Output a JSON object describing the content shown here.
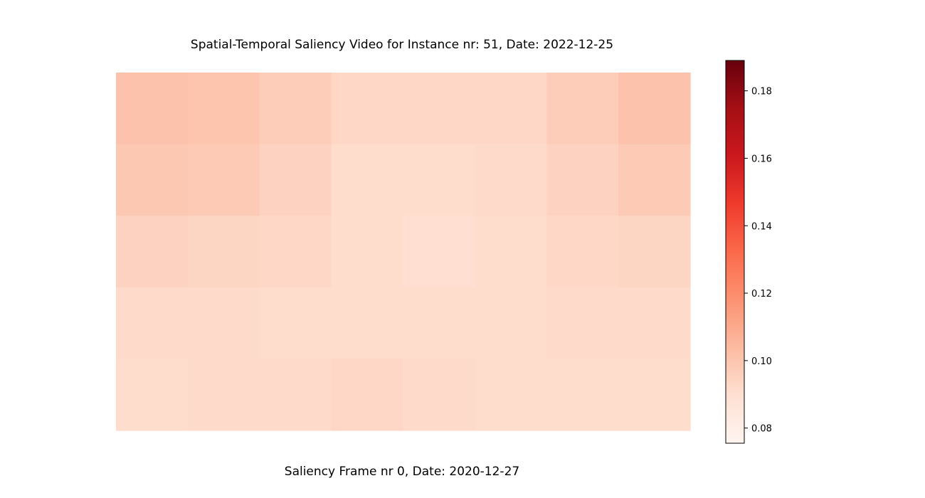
{
  "title": "Spatial-Temporal Saliency Video for Instance nr: 51, Date: 2022-12-25",
  "caption": "Saliency Frame nr 0, Date: 2020-12-27",
  "chart_data": {
    "type": "heatmap",
    "colormap": "Reds",
    "rows": 5,
    "cols": 8,
    "values": [
      [
        0.101,
        0.1,
        0.097,
        0.093,
        0.093,
        0.093,
        0.097,
        0.101
      ],
      [
        0.099,
        0.098,
        0.095,
        0.091,
        0.091,
        0.092,
        0.095,
        0.098
      ],
      [
        0.095,
        0.094,
        0.093,
        0.091,
        0.09,
        0.091,
        0.093,
        0.094
      ],
      [
        0.092,
        0.092,
        0.091,
        0.091,
        0.091,
        0.091,
        0.092,
        0.092
      ],
      [
        0.091,
        0.092,
        0.092,
        0.093,
        0.092,
        0.091,
        0.091,
        0.091
      ]
    ],
    "colorbar": {
      "vmin": 0.0755,
      "vmax": 0.189,
      "ticks": [
        0.08,
        0.1,
        0.12,
        0.14,
        0.16,
        0.18
      ],
      "tick_labels": [
        "0.08",
        "0.10",
        "0.12",
        "0.14",
        "0.16",
        "0.18"
      ]
    },
    "axes_visible": false
  }
}
